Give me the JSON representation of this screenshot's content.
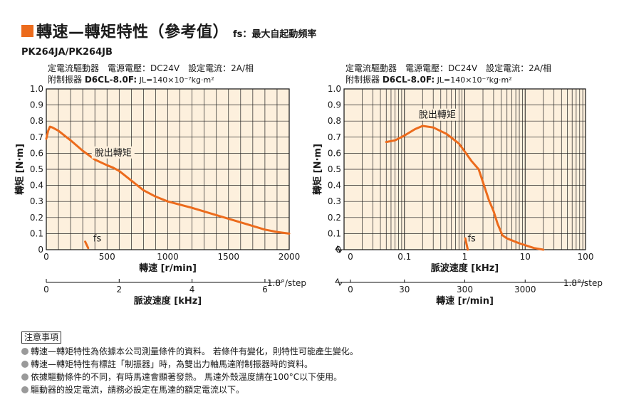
{
  "title": {
    "main": "轉速—轉矩特性（參考值）",
    "fs_note": "fs：最大自起動頻率"
  },
  "model": "PK264JA/PK264JB",
  "colors": {
    "accent": "#ec6b1c",
    "plot_bg": "#fdf0dd",
    "grid": "#222222",
    "curve": "#ec6b1c"
  },
  "chart_data": [
    {
      "type": "line",
      "condition_line1": "定電流驅動器　電源電壓：DC24V　設定電流：2A/相",
      "condition_line2_prefix": "附制振器",
      "condition_damper": "D6CL-8.0F",
      "condition_inertia": "JL=140×10⁻⁷kg·m²",
      "ylabel": "轉矩 [N·m]",
      "xlabel": "轉速 [r/min]",
      "xlabel2": "脈波速度 [kHz]",
      "x2_suffix": "1.8°/step",
      "xscale": "linear",
      "xlim": [
        0,
        2000
      ],
      "ylim": [
        0,
        1.0
      ],
      "yticks": [
        "0",
        "0.1",
        "0.2",
        "0.3",
        "0.4",
        "0.5",
        "0.6",
        "0.7",
        "0.8",
        "0.9",
        "1.0"
      ],
      "xticks": [
        {
          "value": 0,
          "label": "0"
        },
        {
          "value": 500,
          "label": "500"
        },
        {
          "value": 1000,
          "label": "1000"
        },
        {
          "value": 1500,
          "label": "1500"
        },
        {
          "value": 2000,
          "label": "2000"
        }
      ],
      "x2ticks": [
        {
          "value": 0,
          "label": "0"
        },
        {
          "value": 2,
          "label": "2"
        },
        {
          "value": 4,
          "label": "4"
        },
        {
          "value": 6,
          "label": "6"
        }
      ],
      "x2_per_x": 0.003333,
      "grid": true,
      "series": [
        {
          "name": "脫出轉矩",
          "points": [
            [
              0,
              0.69
            ],
            [
              15,
              0.74
            ],
            [
              30,
              0.765
            ],
            [
              50,
              0.76
            ],
            [
              100,
              0.74
            ],
            [
              200,
              0.68
            ],
            [
              300,
              0.615
            ],
            [
              400,
              0.56
            ],
            [
              500,
              0.525
            ],
            [
              550,
              0.51
            ],
            [
              600,
              0.49
            ],
            [
              700,
              0.43
            ],
            [
              800,
              0.37
            ],
            [
              900,
              0.33
            ],
            [
              1000,
              0.3
            ],
            [
              1200,
              0.26
            ],
            [
              1400,
              0.215
            ],
            [
              1600,
              0.17
            ],
            [
              1800,
              0.125
            ],
            [
              1900,
              0.11
            ],
            [
              2000,
              0.1
            ]
          ]
        },
        {
          "name": "fs",
          "points": [
            [
              320,
              0.05
            ],
            [
              345,
              0.01
            ]
          ]
        }
      ],
      "annotations": [
        {
          "text": "脫出轉矩",
          "x": 550,
          "y": 0.585
        },
        {
          "text": "fs",
          "x": 420,
          "y": 0.05
        }
      ]
    },
    {
      "type": "line",
      "condition_line1": "定電流驅動器　電源電壓：DC24V　設定電流：2A/相",
      "condition_line2_prefix": "附制振器",
      "condition_damper": "D6CL-8.0F",
      "condition_inertia": "JL=140×10⁻⁷kg·m²",
      "ylabel": "轉矩 [N·m]",
      "xlabel": "脈波速度 [kHz]",
      "xlabel2": "轉速 [r/min]",
      "x2_suffix": "1.8°/step",
      "xscale": "log",
      "xlim": [
        0.01,
        100
      ],
      "ylim": [
        0,
        1.0
      ],
      "yticks": [
        "0",
        "0.1",
        "0.2",
        "0.3",
        "0.4",
        "0.5",
        "0.6",
        "0.7",
        "0.8",
        "0.9",
        "1.0"
      ],
      "xticks": [
        {
          "value": 0.1,
          "label": "0.1"
        },
        {
          "value": 1,
          "label": "1"
        },
        {
          "value": 10,
          "label": "10"
        },
        {
          "value": 100,
          "label": "100"
        }
      ],
      "x_zero_label": "0",
      "x2ticks": [
        {
          "value": 0.1,
          "label": "30"
        },
        {
          "value": 1,
          "label": "300"
        },
        {
          "value": 10,
          "label": "3000"
        }
      ],
      "x2_zero_label": "0",
      "grid": true,
      "series": [
        {
          "name": "脫出轉矩",
          "points": [
            [
              0.05,
              0.67
            ],
            [
              0.07,
              0.68
            ],
            [
              0.1,
              0.71
            ],
            [
              0.15,
              0.75
            ],
            [
              0.2,
              0.77
            ],
            [
              0.3,
              0.76
            ],
            [
              0.5,
              0.72
            ],
            [
              0.8,
              0.66
            ],
            [
              1,
              0.61
            ],
            [
              1.3,
              0.55
            ],
            [
              1.7,
              0.5
            ],
            [
              2,
              0.42
            ],
            [
              2.5,
              0.31
            ],
            [
              3,
              0.24
            ],
            [
              3.5,
              0.16
            ],
            [
              4.2,
              0.09
            ],
            [
              5,
              0.07
            ],
            [
              8,
              0.04
            ],
            [
              14,
              0.01
            ],
            [
              20,
              0.0
            ]
          ]
        },
        {
          "name": "fs",
          "points": [
            [
              1.02,
              0.07
            ],
            [
              1.12,
              0.0
            ]
          ]
        }
      ],
      "annotations": [
        {
          "text": "脫出轉矩",
          "x": 0.35,
          "y": 0.82
        },
        {
          "text": "fs",
          "x": 1.3,
          "y": 0.05
        }
      ]
    }
  ],
  "notes": {
    "header": "注意事項",
    "items": [
      "轉速—轉矩特性為依據本公司測量條件的資料。 若條件有變化，則特性可能產生變化。",
      "轉速—轉矩特性有標註「制振器」時，為雙出力軸馬達附制振器時的資料。",
      "依據驅動條件的不同，有時馬達會顯著發熱。 馬達外殼溫度請在100°C以下使用。",
      "驅動器的設定電流，請務必設定在馬達的額定電流以下。"
    ]
  }
}
